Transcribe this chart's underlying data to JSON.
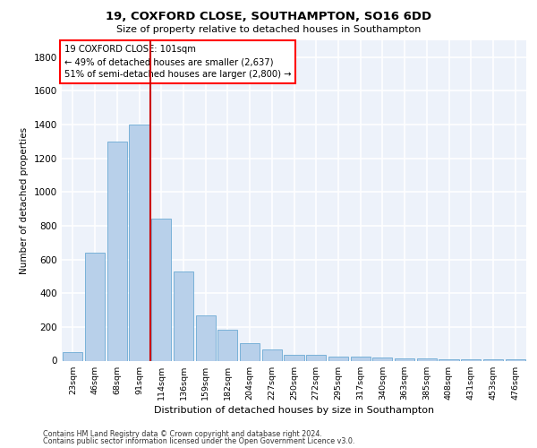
{
  "title1": "19, COXFORD CLOSE, SOUTHAMPTON, SO16 6DD",
  "title2": "Size of property relative to detached houses in Southampton",
  "xlabel": "Distribution of detached houses by size in Southampton",
  "ylabel": "Number of detached properties",
  "footer1": "Contains HM Land Registry data © Crown copyright and database right 2024.",
  "footer2": "Contains public sector information licensed under the Open Government Licence v3.0.",
  "annotation_title": "19 COXFORD CLOSE: 101sqm",
  "annotation_line1": "← 49% of detached houses are smaller (2,637)",
  "annotation_line2": "51% of semi-detached houses are larger (2,800) →",
  "vline_index": 3.5,
  "bar_color": "#b8d0ea",
  "bar_edge_color": "#6aaad4",
  "vline_color": "#cc0000",
  "categories": [
    "23sqm",
    "46sqm",
    "68sqm",
    "91sqm",
    "114sqm",
    "136sqm",
    "159sqm",
    "182sqm",
    "204sqm",
    "227sqm",
    "250sqm",
    "272sqm",
    "295sqm",
    "317sqm",
    "340sqm",
    "363sqm",
    "385sqm",
    "408sqm",
    "431sqm",
    "453sqm",
    "476sqm"
  ],
  "values": [
    50,
    640,
    1300,
    1400,
    840,
    530,
    270,
    185,
    105,
    65,
    35,
    35,
    25,
    25,
    20,
    15,
    12,
    10,
    8,
    8,
    10
  ],
  "ylim": [
    0,
    1900
  ],
  "yticks": [
    0,
    200,
    400,
    600,
    800,
    1000,
    1200,
    1400,
    1600,
    1800
  ],
  "background_color": "#edf2fa",
  "grid_color": "#ffffff"
}
